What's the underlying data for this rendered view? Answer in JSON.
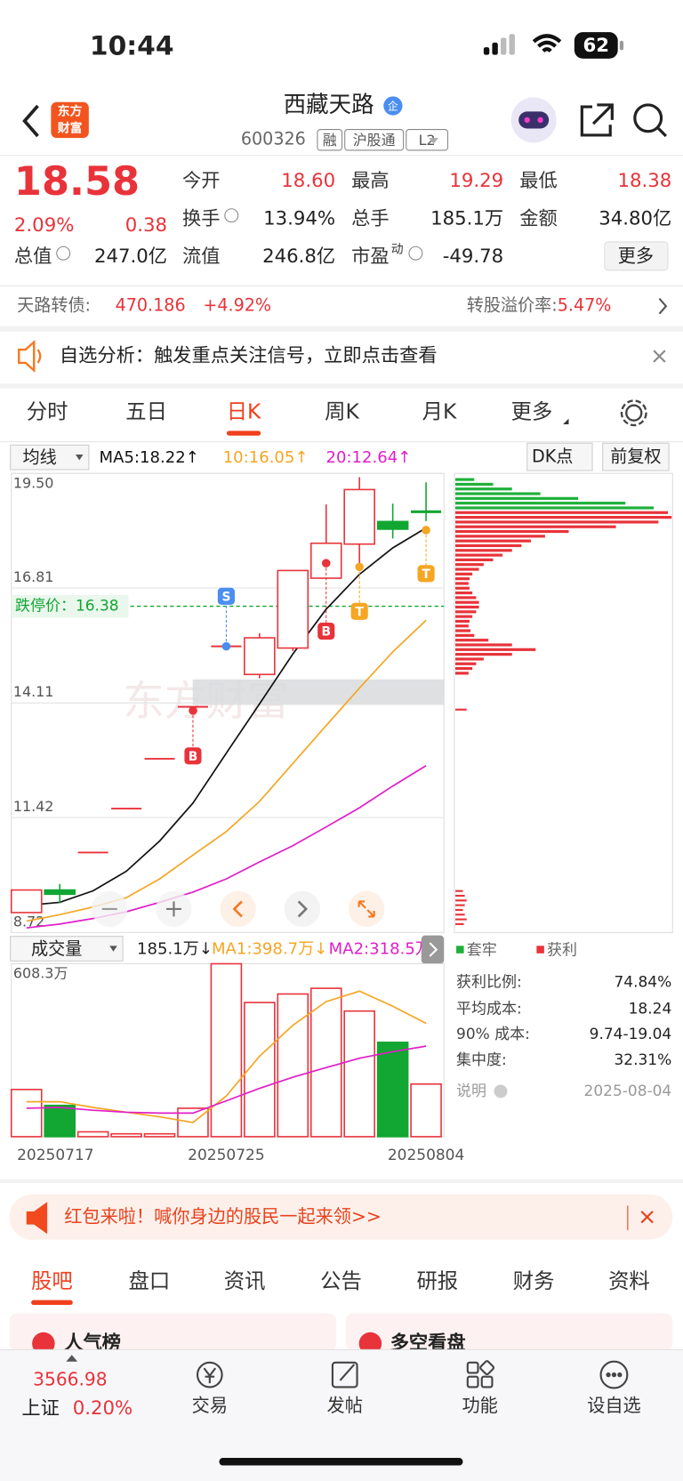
{
  "status": {
    "time": "10:44",
    "battery": "62"
  },
  "header": {
    "logo": [
      "东方",
      "财富"
    ],
    "title": "西藏天路",
    "badge": "企",
    "code": "600326",
    "tags": [
      "融",
      "沪股通",
      "L2"
    ]
  },
  "quote": {
    "price": "18.58",
    "pct": "2.09%",
    "change": "0.38",
    "fields": [
      {
        "label": "今开",
        "value": "18.60"
      },
      {
        "label": "最高",
        "value": "19.29"
      },
      {
        "label": "最低",
        "value": "18.38"
      },
      {
        "label": "换手",
        "value": "13.94%"
      },
      {
        "label": "总手",
        "value": "185.1万"
      },
      {
        "label": "金额",
        "value": "34.80亿"
      },
      {
        "label": "总值",
        "value": "247.0亿"
      },
      {
        "label": "流值",
        "value": "246.8亿"
      },
      {
        "label": "市盈",
        "sup": "动",
        "value": "-49.78"
      }
    ],
    "more": "更多"
  },
  "bond": {
    "label": "天路转债:",
    "price": "470.186",
    "pct": "+4.92%",
    "premium_label": "转股溢价率:",
    "premium": "5.47%"
  },
  "notice": "自选分析：触发重点关注信号，立即点击查看",
  "tabs": {
    "items": [
      "分时",
      "五日",
      "日K",
      "周K",
      "月K",
      "更多"
    ],
    "active": 2
  },
  "kline": {
    "ma_selector": "均线",
    "ma5": "MA5:18.22↑",
    "ma10": "10:16.05↑",
    "ma20": "20:12.64↑",
    "dk": "DK点",
    "adjust": "前复权",
    "watermark": "东方财富",
    "limit_down": {
      "label": "跌停价：",
      "value": 16.38
    },
    "markers": [
      {
        "label": "B"
      },
      {
        "label": "S"
      },
      {
        "label": "B"
      },
      {
        "label": "T"
      },
      {
        "label": "T"
      }
    ],
    "chart": {
      "type": "candlestick",
      "ylim": [
        8.72,
        19.5
      ],
      "yticks": [
        {
          "value": 19.5,
          "label": "19.50"
        },
        16.81,
        14.11,
        11.42,
        8.72
      ],
      "up_color": "#e8333a",
      "down_color": "#12a633",
      "open": [
        9.19,
        9.72,
        10.6,
        11.63,
        12.8,
        14.02,
        15.44,
        14.78,
        15.4,
        17.04,
        17.84,
        18.37,
        18.6
      ],
      "high": [
        9.72,
        9.86,
        10.6,
        11.63,
        12.8,
        14.02,
        15.44,
        15.75,
        17.22,
        18.77,
        19.41,
        18.79,
        19.29
      ],
      "low": [
        9.19,
        9.41,
        10.6,
        11.63,
        12.8,
        14.02,
        15.44,
        14.69,
        15.33,
        17.04,
        17.3,
        17.97,
        18.38
      ],
      "close": [
        9.72,
        9.62,
        10.6,
        11.63,
        12.8,
        14.02,
        15.44,
        15.64,
        17.22,
        17.86,
        19.12,
        18.19,
        18.58
      ],
      "ma5": [
        9.36,
        9.43,
        9.7,
        10.16,
        10.87,
        11.76,
        12.93,
        14.09,
        15.26,
        16.31,
        17.13,
        17.75,
        18.22
      ],
      "ma10": [
        8.99,
        9.14,
        9.32,
        9.54,
        9.98,
        10.54,
        11.09,
        11.8,
        12.69,
        13.58,
        14.46,
        15.31,
        16.05
      ],
      "ma20": [
        8.83,
        8.92,
        9.05,
        9.21,
        9.43,
        9.67,
        9.98,
        10.38,
        10.76,
        11.2,
        11.65,
        12.16,
        12.64
      ],
      "ma_colors": [
        "#111111",
        "#f5a623",
        "#e11ec8"
      ]
    }
  },
  "volume": {
    "selector": "成交量",
    "current": "185.1万↓",
    "ma1": "MA1:398.7万↓",
    "ma2": "MA2:318.5万↓",
    "max_label": "608.3万",
    "ylim": [
      0,
      608.3
    ],
    "dates": [
      "20250717",
      null,
      null,
      null,
      null,
      null,
      "20250725",
      null,
      null,
      null,
      null,
      null,
      "20250804"
    ],
    "values": [
      166,
      110,
      17,
      10,
      10,
      100,
      608.3,
      472,
      502,
      522,
      442,
      332,
      185.1
    ],
    "colors": [
      "#e8333a",
      "#12a633",
      "#e8333a",
      "#e8333a",
      "#e8333a",
      "#e8333a",
      "#e8333a",
      "#e8333a",
      "#e8333a",
      "#e8333a",
      "#e8333a",
      "#12a633",
      "#e8333a"
    ],
    "ma1_values": [
      123,
      123,
      103,
      86,
      70,
      50,
      143,
      283,
      392,
      475,
      512,
      459,
      398.7
    ],
    "ma2_values": [
      100,
      103,
      93,
      86,
      83,
      83,
      126,
      170,
      209,
      243,
      276,
      299,
      318.5
    ],
    "ma_colors": [
      "#f5a623",
      "#e11ec8"
    ]
  },
  "chips": {
    "legend": [
      "套牢",
      "获利"
    ],
    "stats": [
      {
        "label": "获利比例:",
        "value": "74.84%"
      },
      {
        "label": "平均成本:",
        "value": "18.24"
      },
      {
        "label": "90% 成本:",
        "value": "9.74-19.04"
      },
      {
        "label": "集中度:",
        "value": "32.31%"
      }
    ],
    "note": "说明",
    "date": "2025-08-04"
  },
  "banner": "红包来啦！喊你身边的股民一起来领>>",
  "section_tabs": {
    "items": [
      "股吧",
      "盘口",
      "资讯",
      "公告",
      "研报",
      "财务",
      "资料"
    ],
    "active": 0
  },
  "cards": [
    "人气榜",
    "多空看盘"
  ],
  "bottom_nav": {
    "index_value": "3566.98",
    "index_name": "上证",
    "index_pct": "0.20%",
    "items": [
      "交易",
      "发帖",
      "功能",
      "设自选"
    ]
  }
}
